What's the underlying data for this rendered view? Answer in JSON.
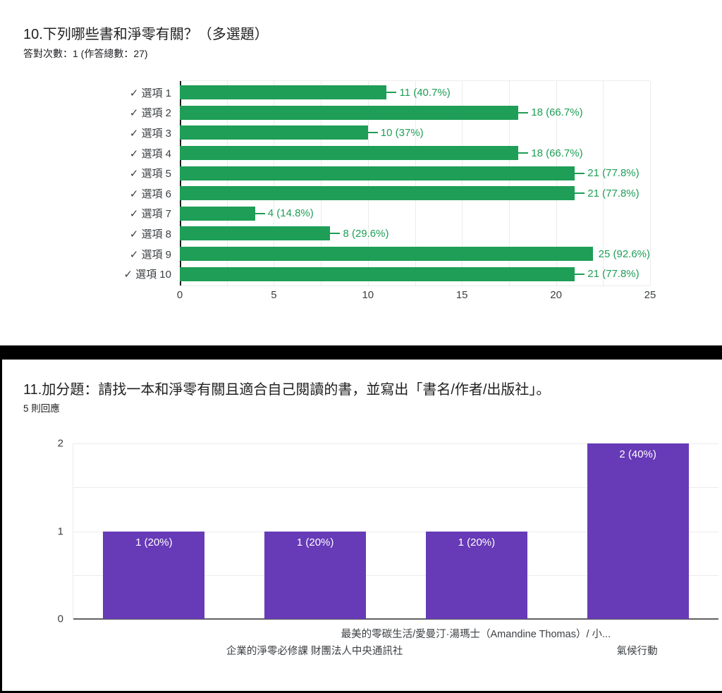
{
  "chart_data": [
    {
      "type": "bar",
      "orientation": "horizontal",
      "title": "10.下列哪些書和淨零有關？（多選題）",
      "subtitle": "答對次數：1 (作答總數：27)",
      "categories": [
        "✓ 選項 1",
        "✓ 選項 2",
        "✓ 選項 3",
        "✓ 選項 4",
        "✓ 選項 5",
        "✓ 選項 6",
        "✓ 選項 7",
        "✓ 選項 8",
        "✓ 選項 9",
        "✓ 選項 10"
      ],
      "values": [
        11,
        18,
        10,
        18,
        21,
        21,
        4,
        8,
        25,
        21
      ],
      "value_labels": [
        "11 (40.7%)",
        "18 (66.7%)",
        "10 (37%)",
        "18 (66.7%)",
        "21 (77.8%)",
        "21 (77.8%)",
        "4 (14.8%)",
        "8 (29.6%)",
        "25 (92.6%)",
        "21 (77.8%)"
      ],
      "xlim": [
        0,
        25
      ],
      "xticks": [
        0,
        5,
        10,
        15,
        20,
        25
      ],
      "bar_color": "#1e9e56",
      "label_color": "#1e9e56",
      "grid": true,
      "legend": "none"
    },
    {
      "type": "bar",
      "orientation": "vertical",
      "title": "11.加分題：請找一本和淨零有關且適合自己閱讀的書，並寫出「書名/作者/出版社」。",
      "subtitle": "5 則回應",
      "categories": [
        "",
        "企業的淨零必修課 財團法人中央通訊社",
        "最美的零碳生活/愛曼汀·湯瑪士（Amandine Thomas）/ 小...",
        "氣候行動"
      ],
      "values": [
        1,
        1,
        1,
        2
      ],
      "value_labels": [
        "1 (20%)",
        "1 (20%)",
        "1 (20%)",
        "2 (40%)"
      ],
      "ylim": [
        0,
        2
      ],
      "yticks": [
        0,
        1,
        2
      ],
      "bar_color": "#673ab7",
      "value_label_color": "#ffffff",
      "grid": true,
      "legend": "none"
    }
  ]
}
